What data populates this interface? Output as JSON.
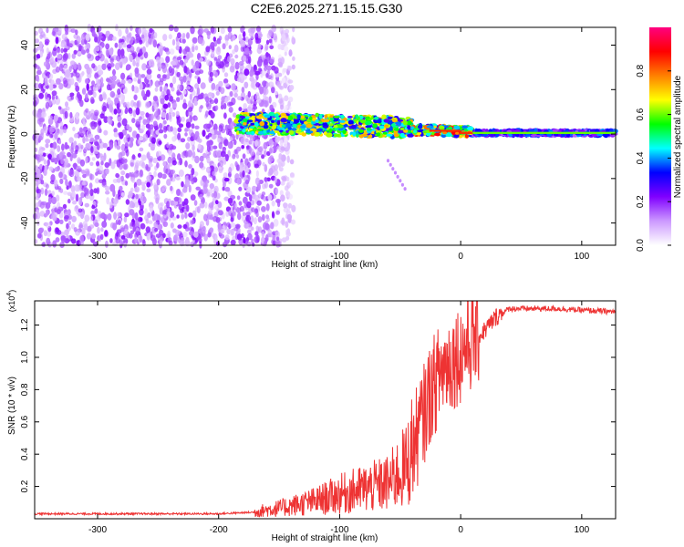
{
  "title": "C2E6.2025.271.15.15.G30",
  "chart_data": [
    {
      "type": "heatmap",
      "xlabel": "Height of straight line (km)",
      "ylabel": "Frequency (Hz)",
      "xlim": [
        -352,
        128
      ],
      "ylim": [
        -50,
        48
      ],
      "xticks": [
        -300,
        -200,
        -100,
        0,
        100
      ],
      "yticks": [
        -40,
        -20,
        0,
        20,
        40
      ],
      "colorbar": {
        "label": "Normalized spectral amplitude",
        "range": [
          0,
          1
        ],
        "ticks": [
          0.0,
          0.2,
          0.4,
          0.6,
          0.8
        ],
        "colors": [
          "#ffffff",
          "#cc99ff",
          "#8000ff",
          "#0000ff",
          "#00ffff",
          "#00ff00",
          "#ffff00",
          "#ff8000",
          "#ff0000",
          "#ff0080"
        ]
      },
      "features": [
        {
          "name": "noise",
          "x_range": [
            -352,
            -150
          ],
          "y_range": [
            -50,
            48
          ],
          "amplitude": [
            0.05,
            0.22
          ]
        },
        {
          "name": "signal",
          "x_range": [
            -185,
            128
          ],
          "y_center": [
            4,
            0
          ],
          "amplitude": [
            0.3,
            0.9
          ]
        }
      ]
    },
    {
      "type": "line",
      "xlabel": "Height of straight line (km)",
      "ylabel": "SNR (10 * v/v)",
      "yscale_label": "(x10",
      "yscale_exp": "4",
      "yscale_close": ")",
      "xlim": [
        -352,
        128
      ],
      "ylim": [
        0,
        1.35
      ],
      "xticks": [
        -300,
        -200,
        -100,
        0,
        100
      ],
      "yticks": [
        0.2,
        0.4,
        0.6,
        0.8,
        1.0,
        1.2
      ],
      "color": "#ee3333",
      "series": [
        {
          "name": "SNR",
          "x": [
            -352,
            -300,
            -250,
            -200,
            -170,
            -150,
            -120,
            -100,
            -80,
            -60,
            -45,
            -35,
            -25,
            -15,
            0,
            15,
            30,
            40,
            60,
            80,
            100,
            128
          ],
          "values": [
            0.03,
            0.03,
            0.03,
            0.03,
            0.04,
            0.06,
            0.1,
            0.14,
            0.17,
            0.2,
            0.3,
            0.5,
            0.75,
            0.9,
            1.0,
            1.12,
            1.25,
            1.3,
            1.3,
            1.3,
            1.29,
            1.28
          ]
        }
      ]
    }
  ]
}
